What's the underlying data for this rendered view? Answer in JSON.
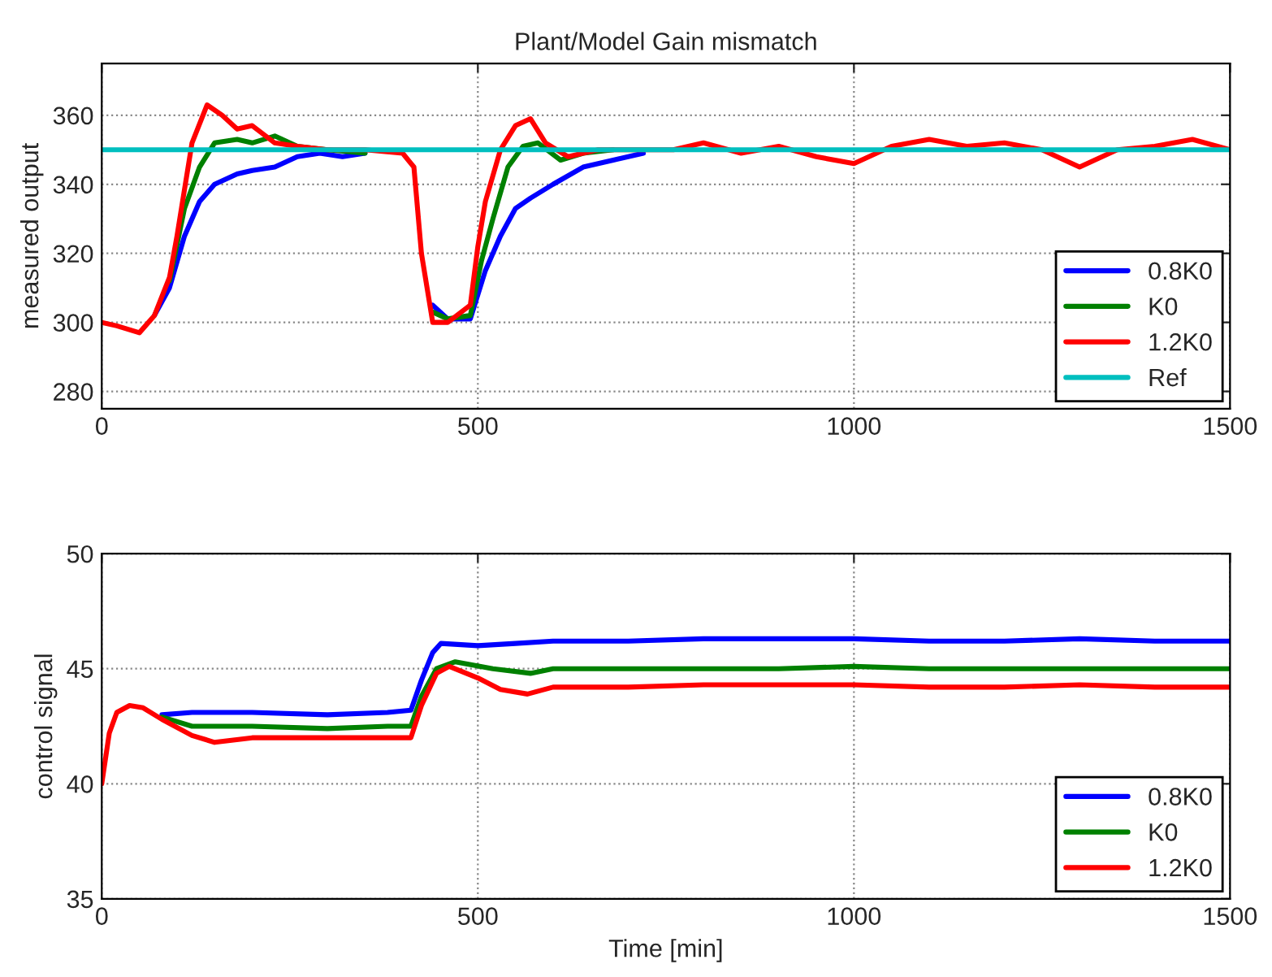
{
  "chart_data": [
    {
      "type": "line",
      "title": "Plant/Model Gain mismatch",
      "ylabel": "measured output",
      "xlim": [
        0,
        1500
      ],
      "xticks": [
        0,
        500,
        1000,
        1500
      ],
      "ylim": [
        275,
        375
      ],
      "yticks": [
        280,
        300,
        320,
        340,
        360
      ],
      "grid": true,
      "legend": "bottom right",
      "series": [
        {
          "name": "0.8K0",
          "color": "#0000ff",
          "x": [
            70,
            90,
            110,
            130,
            150,
            180,
            200,
            230,
            260,
            290,
            320,
            350,
            400,
            415,
            425,
            440,
            460,
            490,
            510,
            530,
            550,
            570,
            600,
            640,
            680,
            720
          ],
          "values": [
            302,
            310,
            325,
            335,
            340,
            343,
            344,
            345,
            348,
            349,
            348,
            349,
            null,
            null,
            null,
            305,
            301,
            301,
            315,
            325,
            333,
            336,
            340,
            345,
            347,
            349
          ]
        },
        {
          "name": "K0",
          "color": "#008000",
          "x": [
            90,
            110,
            130,
            150,
            180,
            200,
            230,
            260,
            300,
            350,
            400,
            415,
            425,
            440,
            460,
            490,
            505,
            520,
            540,
            560,
            580,
            610,
            640,
            680
          ],
          "values": [
            312,
            333,
            345,
            352,
            353,
            352,
            354,
            351,
            350,
            349,
            null,
            null,
            null,
            303,
            301,
            302,
            318,
            330,
            345,
            351,
            352,
            347,
            349,
            350
          ]
        },
        {
          "name": "1.2K0",
          "color": "#ff0000",
          "x": [
            0,
            20,
            50,
            70,
            90,
            100,
            120,
            140,
            160,
            180,
            200,
            230,
            260,
            300,
            350,
            400,
            415,
            425,
            440,
            460,
            490,
            500,
            510,
            530,
            550,
            570,
            590,
            620,
            660,
            720,
            760,
            800,
            850,
            900,
            950,
            1000,
            1050,
            1100,
            1150,
            1200,
            1250,
            1300,
            1350,
            1400,
            1450,
            1500
          ],
          "values": [
            300,
            299,
            297,
            302,
            313,
            325,
            352,
            363,
            360,
            356,
            357,
            352,
            351,
            350,
            350,
            349,
            345,
            320,
            300,
            300,
            305,
            322,
            335,
            350,
            357,
            359,
            352,
            348,
            350,
            350,
            350,
            352,
            349,
            351,
            348,
            346,
            351,
            353,
            351,
            352,
            350,
            345,
            350,
            351,
            353,
            350
          ]
        },
        {
          "name": "Ref",
          "color": "#00bfbf",
          "x": [
            0,
            1500
          ],
          "values": [
            350,
            350
          ]
        }
      ]
    },
    {
      "type": "line",
      "xlabel": "Time [min]",
      "ylabel": "control signal",
      "xlim": [
        0,
        1500
      ],
      "xticks": [
        0,
        500,
        1000,
        1500
      ],
      "ylim": [
        35,
        50
      ],
      "yticks": [
        35,
        40,
        45,
        50
      ],
      "grid": true,
      "legend": "bottom right",
      "series": [
        {
          "name": "0.8K0",
          "color": "#0000ff",
          "x": [
            80,
            120,
            200,
            300,
            380,
            411,
            425,
            440,
            451,
            500,
            550,
            600,
            700,
            800,
            900,
            1000,
            1100,
            1200,
            1300,
            1400,
            1500
          ],
          "values": [
            43.0,
            43.1,
            43.1,
            43.0,
            43.1,
            43.2,
            44.5,
            45.7,
            46.1,
            46.0,
            46.1,
            46.2,
            46.2,
            46.3,
            46.3,
            46.3,
            46.2,
            46.2,
            46.3,
            46.2,
            46.2
          ]
        },
        {
          "name": "K0",
          "color": "#008000",
          "x": [
            80,
            120,
            200,
            300,
            380,
            411,
            425,
            445,
            470,
            520,
            570,
            600,
            700,
            800,
            900,
            1000,
            1100,
            1200,
            1300,
            1400,
            1500
          ],
          "values": [
            42.9,
            42.5,
            42.5,
            42.4,
            42.5,
            42.5,
            43.8,
            45.0,
            45.3,
            45.0,
            44.8,
            45.0,
            45.0,
            45.0,
            45.0,
            45.1,
            45.0,
            45.0,
            45.0,
            45.0,
            45.0
          ]
        },
        {
          "name": "1.2K0",
          "color": "#ff0000",
          "x": [
            0,
            10,
            20,
            37,
            55,
            80,
            120,
            150,
            200,
            300,
            380,
            411,
            425,
            445,
            462,
            500,
            530,
            566,
            600,
            700,
            800,
            900,
            1000,
            1100,
            1200,
            1300,
            1400,
            1500
          ],
          "values": [
            40,
            42.2,
            43.1,
            43.4,
            43.3,
            42.8,
            42.1,
            41.8,
            42.0,
            42.0,
            42.0,
            42.0,
            43.4,
            44.8,
            45.1,
            44.6,
            44.1,
            43.9,
            44.2,
            44.2,
            44.3,
            44.3,
            44.3,
            44.2,
            44.2,
            44.3,
            44.2,
            44.2
          ]
        }
      ]
    }
  ]
}
